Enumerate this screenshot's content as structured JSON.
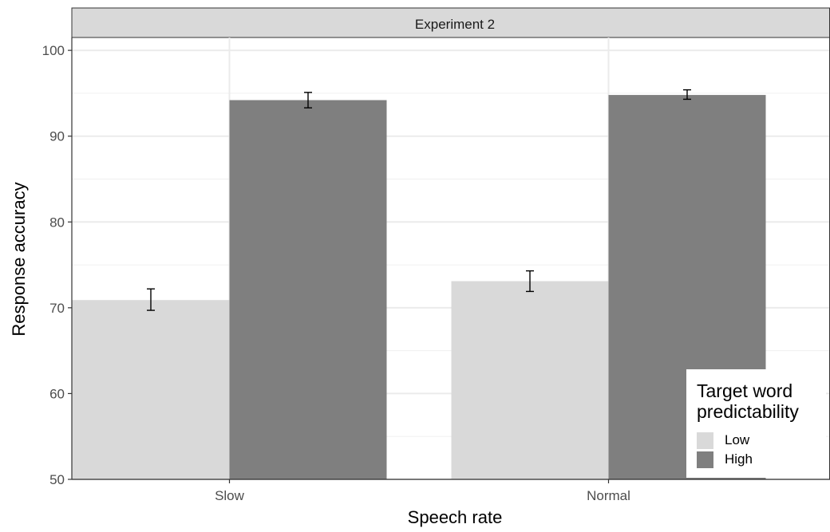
{
  "chart_data": {
    "type": "bar",
    "facet_title": "Experiment 2",
    "categories": [
      "Slow",
      "Normal"
    ],
    "series": [
      {
        "name": "Low",
        "color": "#d9d9d9",
        "values": [
          70.9,
          73.1
        ],
        "error_low": [
          69.7,
          71.9
        ],
        "error_high": [
          72.2,
          74.3
        ]
      },
      {
        "name": "High",
        "color": "#7f7f7f",
        "values": [
          94.2,
          94.8
        ],
        "error_low": [
          93.3,
          94.3
        ],
        "error_high": [
          95.1,
          95.4
        ]
      }
    ],
    "xlabel": "Speech rate",
    "ylabel": "Response accuracy",
    "ylim": [
      50,
      101.5
    ],
    "yticks": [
      50,
      60,
      70,
      80,
      90,
      100
    ],
    "grid": true,
    "legend": {
      "title": "Target word predictability",
      "placement": "bottom-right"
    }
  }
}
